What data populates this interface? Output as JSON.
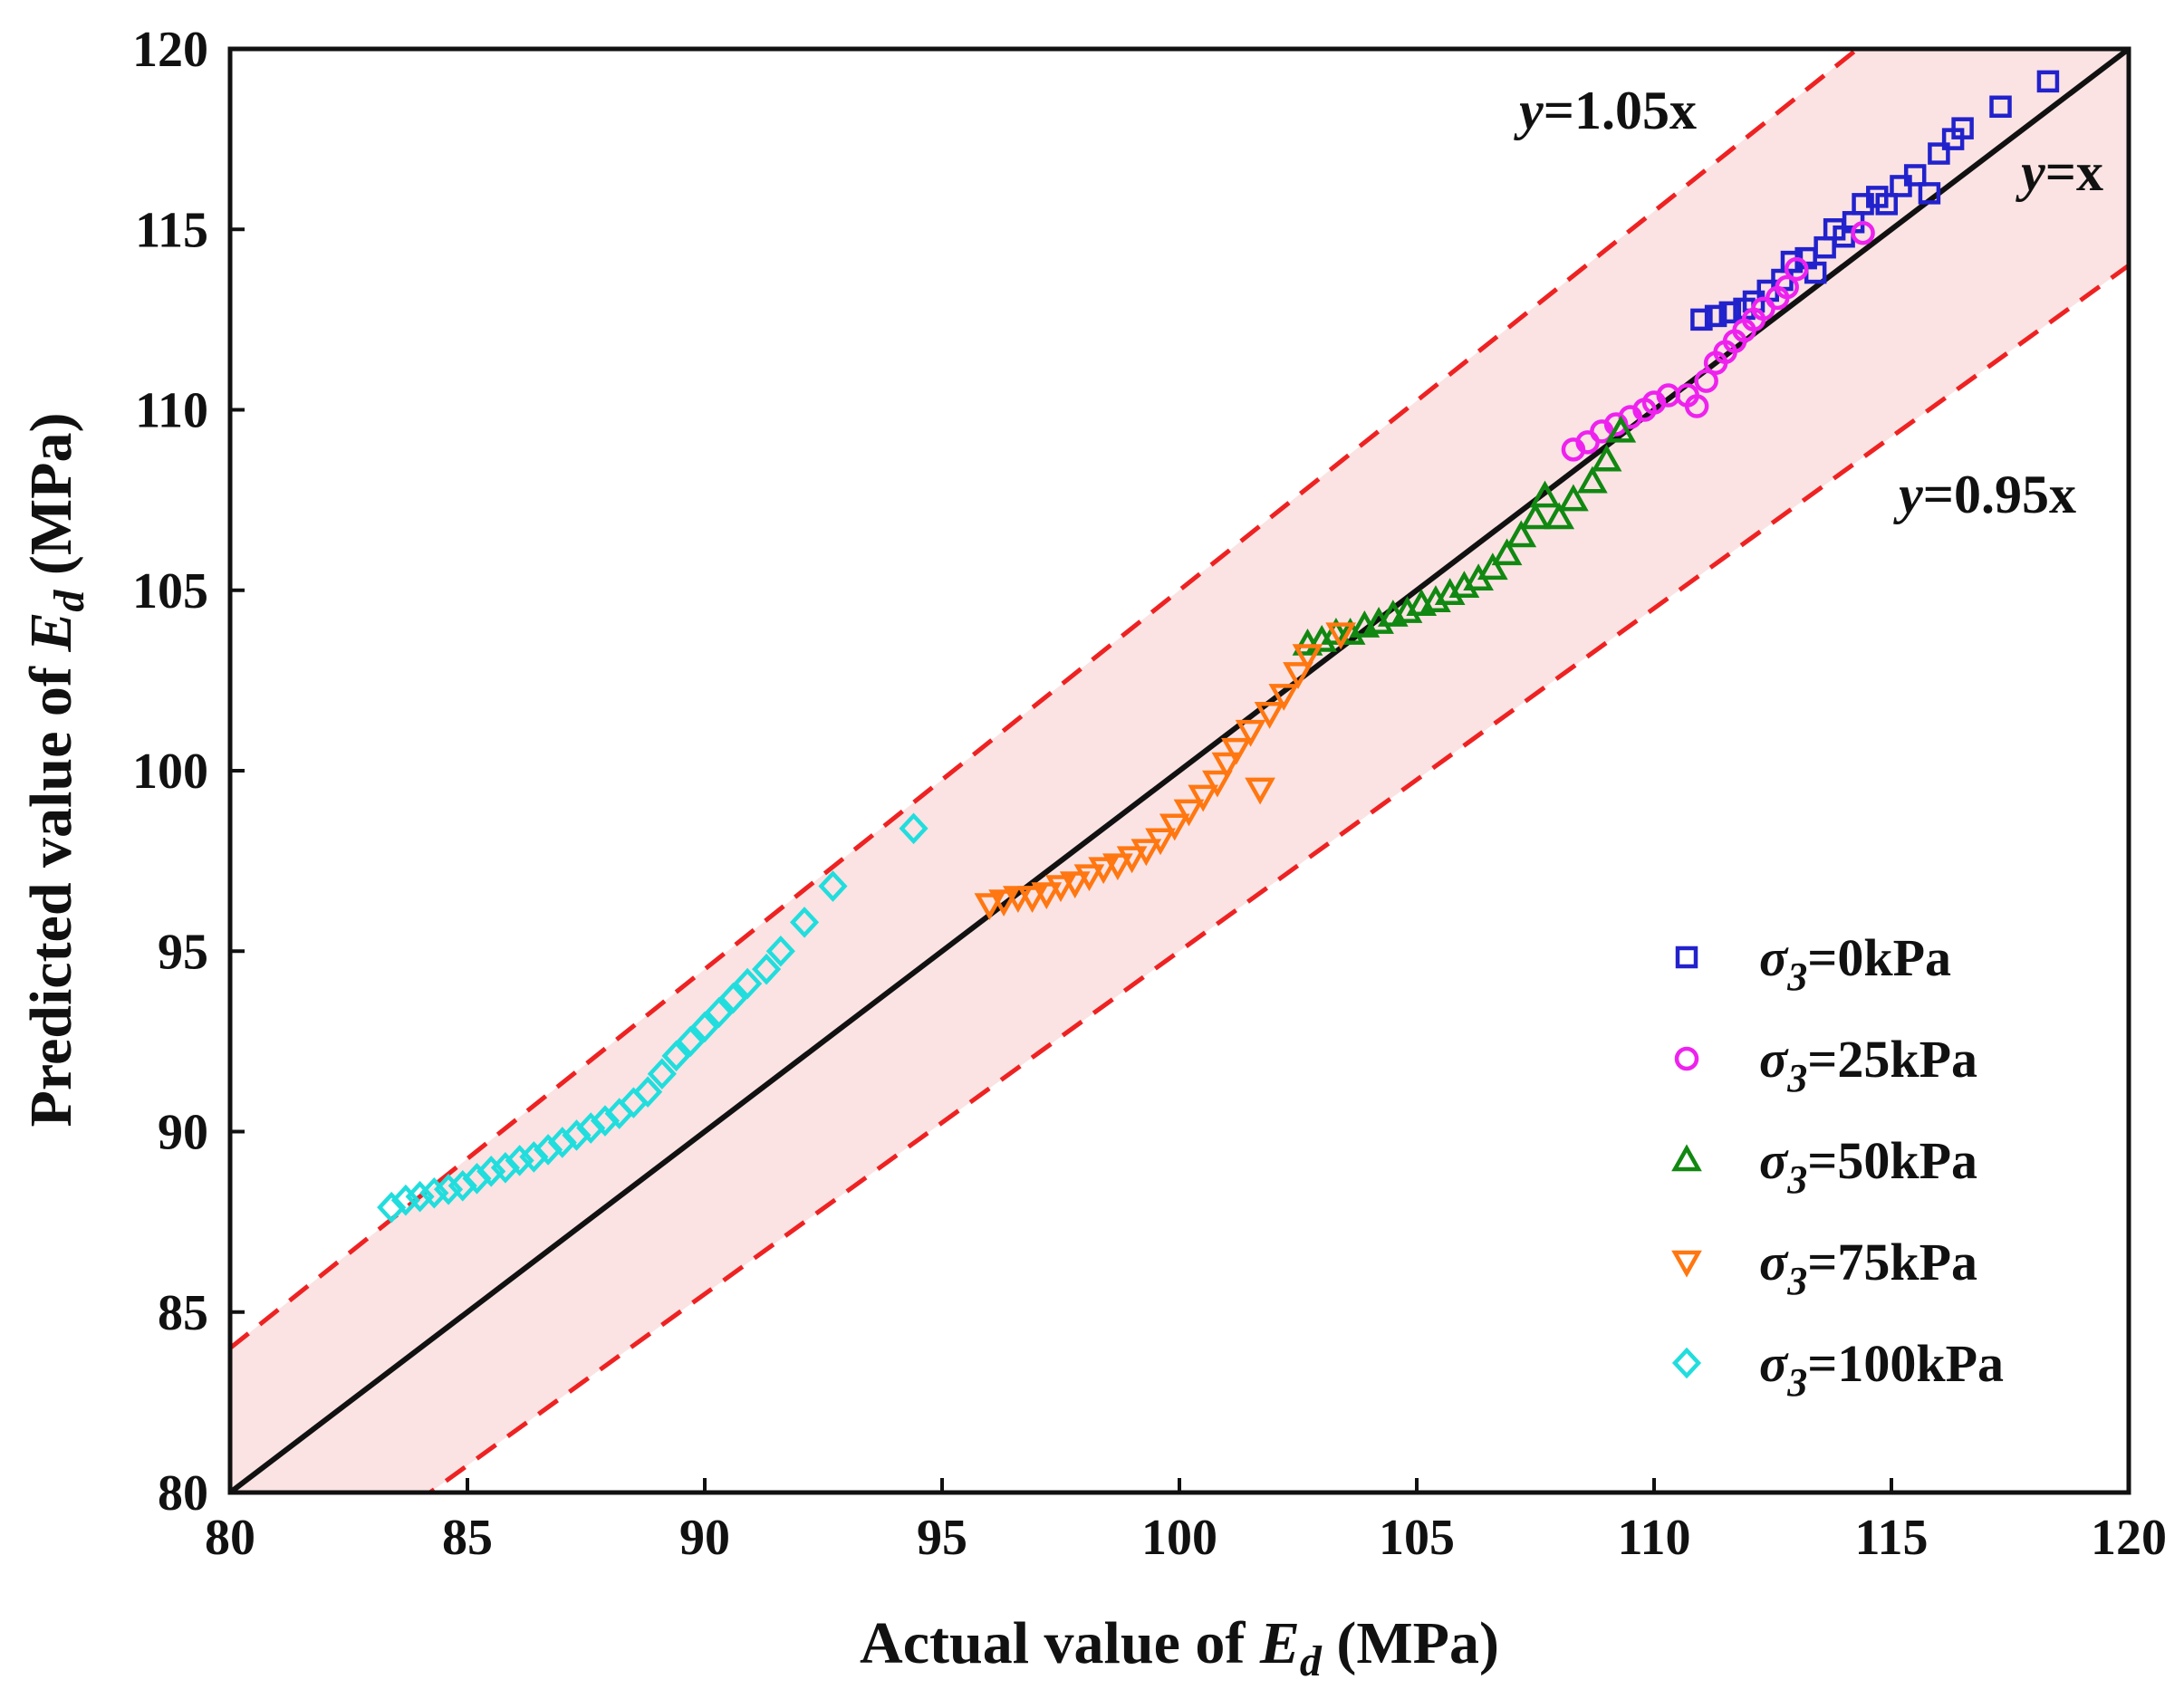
{
  "chart_data": {
    "type": "scatter",
    "xlabel": {
      "prefix": "Actual value of ",
      "symbol": "E",
      "sub": "d",
      "suffix": " (MPa)"
    },
    "ylabel": {
      "prefix": "Predicted value of ",
      "symbol": "E",
      "sub": "d",
      "suffix": " (MPa)"
    },
    "xlim": [
      80,
      120
    ],
    "ylim": [
      80,
      120
    ],
    "xticks": [
      80,
      85,
      90,
      95,
      100,
      105,
      110,
      115,
      120
    ],
    "yticks": [
      80,
      85,
      90,
      95,
      100,
      105,
      110,
      115,
      120
    ],
    "grid": false,
    "legend_position": "lower-right",
    "reference_lines": [
      {
        "name": "y=x",
        "label_var": "y",
        "label_expr": "=x",
        "slope": 1.0,
        "style": "solid",
        "color": "#111111"
      },
      {
        "name": "y=1.05x",
        "label_var": "y",
        "label_expr": "=1.05x",
        "slope": 1.05,
        "style": "dashed",
        "color": "#ee2222"
      },
      {
        "name": "y=0.95x",
        "label_var": "y",
        "label_expr": "=0.95x",
        "slope": 0.95,
        "style": "dashed",
        "color": "#ee2222"
      }
    ],
    "band_fill": "#fbe3e3",
    "series": [
      {
        "name": "σ3=0kPa",
        "sym": "σ",
        "sub": "3",
        "rest": "=0kPa",
        "marker": "square",
        "color": "#2222cc",
        "points": [
          [
            111.0,
            112.5
          ],
          [
            111.3,
            112.6
          ],
          [
            111.6,
            112.7
          ],
          [
            111.9,
            112.8
          ],
          [
            112.1,
            113.0
          ],
          [
            112.4,
            113.3
          ],
          [
            112.7,
            113.6
          ],
          [
            112.9,
            114.1
          ],
          [
            113.2,
            114.2
          ],
          [
            113.4,
            113.8
          ],
          [
            113.6,
            114.5
          ],
          [
            113.8,
            115.0
          ],
          [
            114.0,
            114.8
          ],
          [
            114.2,
            115.2
          ],
          [
            114.4,
            115.7
          ],
          [
            114.7,
            115.9
          ],
          [
            114.9,
            115.7
          ],
          [
            115.2,
            116.2
          ],
          [
            115.5,
            116.5
          ],
          [
            115.8,
            116.0
          ],
          [
            116.0,
            117.1
          ],
          [
            116.3,
            117.5
          ],
          [
            116.5,
            117.8
          ],
          [
            117.3,
            118.4
          ],
          [
            118.3,
            119.1
          ]
        ]
      },
      {
        "name": "σ3=25kPa",
        "sym": "σ",
        "sub": "3",
        "rest": "=25kPa",
        "marker": "circle",
        "color": "#ee22ee",
        "points": [
          [
            108.3,
            108.9
          ],
          [
            108.6,
            109.1
          ],
          [
            108.9,
            109.4
          ],
          [
            109.2,
            109.6
          ],
          [
            109.5,
            109.8
          ],
          [
            109.8,
            110.0
          ],
          [
            110.0,
            110.2
          ],
          [
            110.3,
            110.4
          ],
          [
            110.7,
            110.4
          ],
          [
            110.9,
            110.1
          ],
          [
            111.1,
            110.8
          ],
          [
            111.3,
            111.3
          ],
          [
            111.5,
            111.6
          ],
          [
            111.7,
            111.9
          ],
          [
            111.9,
            112.2
          ],
          [
            112.1,
            112.5
          ],
          [
            112.3,
            112.8
          ],
          [
            112.6,
            113.1
          ],
          [
            112.8,
            113.4
          ],
          [
            113.0,
            113.9
          ],
          [
            114.4,
            114.9
          ]
        ]
      },
      {
        "name": "σ3=50kPa",
        "sym": "σ",
        "sub": "3",
        "rest": "=50kPa",
        "marker": "triangle-up",
        "color": "#118811",
        "points": [
          [
            102.7,
            103.5
          ],
          [
            103.0,
            103.6
          ],
          [
            103.3,
            103.8
          ],
          [
            103.6,
            103.8
          ],
          [
            103.9,
            104.0
          ],
          [
            104.2,
            104.1
          ],
          [
            104.5,
            104.3
          ],
          [
            104.8,
            104.4
          ],
          [
            105.1,
            104.6
          ],
          [
            105.4,
            104.7
          ],
          [
            105.7,
            104.9
          ],
          [
            106.0,
            105.1
          ],
          [
            106.3,
            105.3
          ],
          [
            106.6,
            105.6
          ],
          [
            106.9,
            106.0
          ],
          [
            107.2,
            106.5
          ],
          [
            107.5,
            107.0
          ],
          [
            107.7,
            107.6
          ],
          [
            108.0,
            107.0
          ],
          [
            108.3,
            107.5
          ],
          [
            108.7,
            108.0
          ],
          [
            109.0,
            108.6
          ],
          [
            109.3,
            109.4
          ]
        ]
      },
      {
        "name": "σ3=75kPa",
        "sym": "σ",
        "sub": "3",
        "rest": "=75kPa",
        "marker": "triangle-down",
        "color": "#ff7711",
        "points": [
          [
            96.0,
            96.3
          ],
          [
            96.3,
            96.4
          ],
          [
            96.6,
            96.5
          ],
          [
            96.9,
            96.5
          ],
          [
            97.2,
            96.6
          ],
          [
            97.5,
            96.8
          ],
          [
            97.8,
            96.9
          ],
          [
            98.1,
            97.1
          ],
          [
            98.4,
            97.3
          ],
          [
            98.7,
            97.4
          ],
          [
            99.0,
            97.6
          ],
          [
            99.3,
            97.8
          ],
          [
            99.6,
            98.1
          ],
          [
            99.9,
            98.5
          ],
          [
            100.2,
            98.9
          ],
          [
            100.5,
            99.3
          ],
          [
            100.8,
            99.7
          ],
          [
            101.0,
            100.2
          ],
          [
            101.2,
            100.6
          ],
          [
            101.5,
            101.1
          ],
          [
            101.7,
            99.5
          ],
          [
            101.9,
            101.6
          ],
          [
            102.2,
            102.1
          ],
          [
            102.5,
            102.7
          ],
          [
            102.7,
            103.2
          ],
          [
            103.4,
            103.8
          ]
        ]
      },
      {
        "name": "σ3=100kPa",
        "sym": "σ",
        "sub": "3",
        "rest": "=100kPa",
        "marker": "diamond",
        "color": "#22dddd",
        "points": [
          [
            83.4,
            87.9
          ],
          [
            83.7,
            88.1
          ],
          [
            84.0,
            88.2
          ],
          [
            84.3,
            88.3
          ],
          [
            84.6,
            88.4
          ],
          [
            84.9,
            88.5
          ],
          [
            85.2,
            88.7
          ],
          [
            85.5,
            88.9
          ],
          [
            85.8,
            89.0
          ],
          [
            86.1,
            89.2
          ],
          [
            86.4,
            89.3
          ],
          [
            86.7,
            89.5
          ],
          [
            87.0,
            89.7
          ],
          [
            87.3,
            89.9
          ],
          [
            87.6,
            90.1
          ],
          [
            87.9,
            90.3
          ],
          [
            88.2,
            90.5
          ],
          [
            88.5,
            90.8
          ],
          [
            88.8,
            91.1
          ],
          [
            89.1,
            91.6
          ],
          [
            89.4,
            92.1
          ],
          [
            89.7,
            92.5
          ],
          [
            90.0,
            92.9
          ],
          [
            90.3,
            93.3
          ],
          [
            90.6,
            93.7
          ],
          [
            90.9,
            94.1
          ],
          [
            91.3,
            94.5
          ],
          [
            91.6,
            95.0
          ],
          [
            92.1,
            95.8
          ],
          [
            92.7,
            96.8
          ],
          [
            94.4,
            98.4
          ]
        ]
      }
    ]
  }
}
